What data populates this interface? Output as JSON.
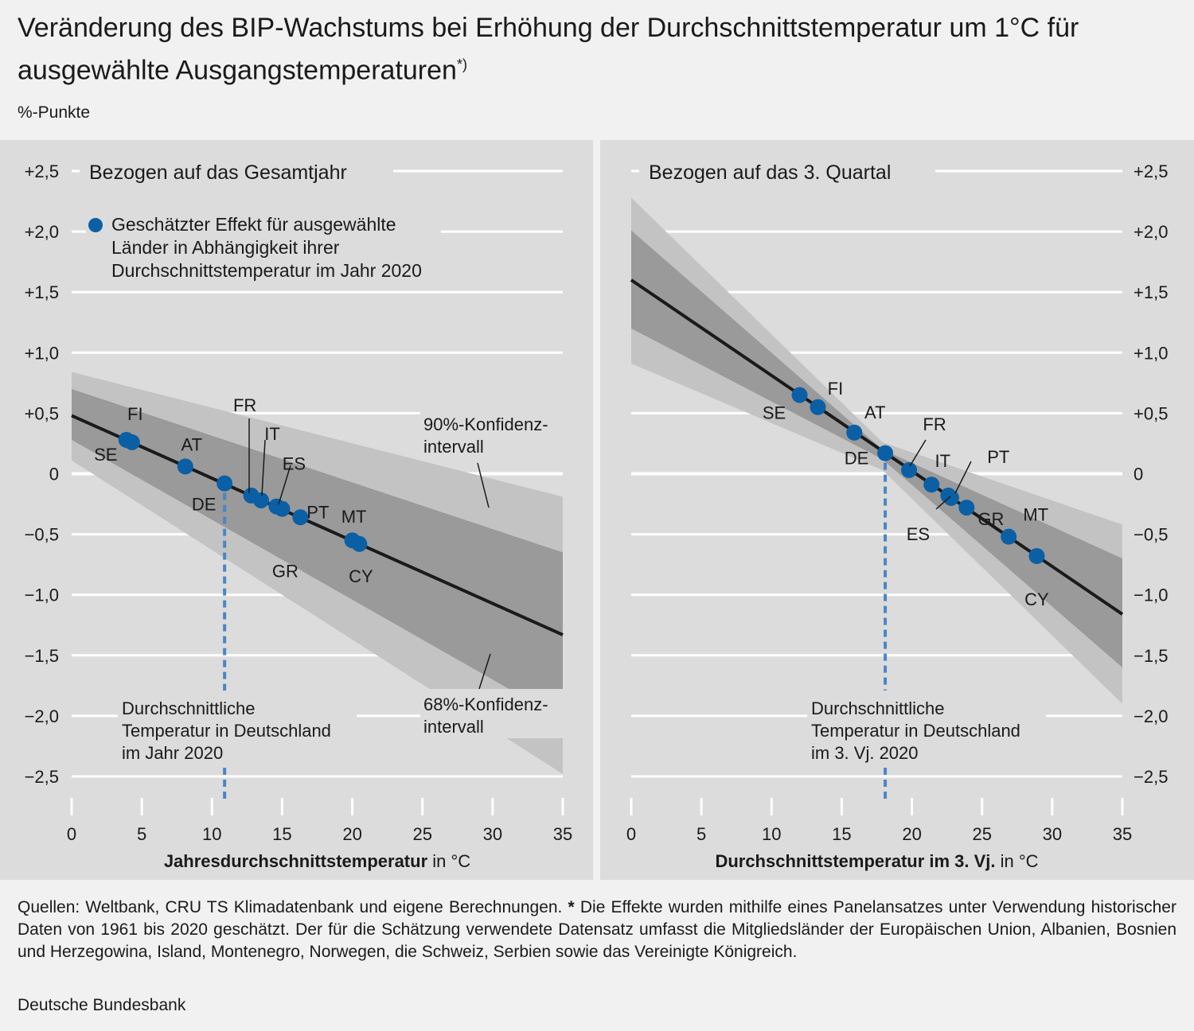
{
  "title": "Veränderung des BIP-Wachstums bei Erhöhung der Durchschnittstemperatur um 1°C für ausgewählte Ausgangstemperaturen",
  "title_marker": "*)",
  "unit": "%-Punkte",
  "footnote_source": "Quellen: Weltbank, CRU TS Klimadatenbank und eigene Berechnungen.",
  "footnote_marker": "*",
  "footnote_text": "Die Effekte wurden mithilfe eines Panelansatzes unter Verwendung historischer Daten von 1961 bis 2020 geschätzt. Der für die Schätzung verwendete Datensatz umfasst die Mitgliedsländer der Europäischen Union, Albanien, Bosnien und Herzegowina, Island, Montenegro, Norwegen, die Schweiz, Serbien sowie das Vereinigte Königreich.",
  "publisher": "Deutsche Bundesbank",
  "colors": {
    "ci90": "#c3c3c3",
    "ci68": "#9a9a9a",
    "line": "#1a1a1a",
    "point": "#0b5fa5",
    "dashed": "#4a86c5",
    "panel": "#dcdcdc",
    "grid": "#ffffff"
  },
  "chart_data": [
    {
      "type": "line",
      "title": "Bezogen auf das Gesamtjahr",
      "xlabel_bold": "Jahresdurchschnittstemperatur",
      "xlabel_unit": "in °C",
      "xlim": [
        0,
        35
      ],
      "ylim": [
        -2.5,
        2.5
      ],
      "x_ticks": [
        "0",
        "5",
        "10",
        "15",
        "20",
        "25",
        "30",
        "35"
      ],
      "y_ticks": [
        "+2,5",
        "+2,0",
        "+1,5",
        "+1,0",
        "+0,5",
        "0",
        "−0,5",
        "−1,0",
        "−1,5",
        "−2,0",
        "−2,5"
      ],
      "y_tick_values": [
        2.5,
        2.0,
        1.5,
        1.0,
        0.5,
        0,
        -0.5,
        -1.0,
        -1.5,
        -2.0,
        -2.5
      ],
      "estimate_line": {
        "x": [
          0,
          35
        ],
        "y": [
          0.48,
          -1.33
        ]
      },
      "ci68": {
        "x": [
          0,
          35
        ],
        "upper": [
          0.7,
          -0.65
        ],
        "lower": [
          0.28,
          -2.03
        ]
      },
      "ci90": {
        "x": [
          0,
          35
        ],
        "upper": [
          0.84,
          -0.19
        ],
        "lower": [
          0.11,
          -2.48
        ]
      },
      "legend_points": "Geschätzter Effekt für ausgewählte Länder in Abhängigkeit ihrer Durchschnittstemperatur im Jahr 2020",
      "label_ci90": "90%-Konfidenz-intervall",
      "label_ci68": "68%-Konfidenz-intervall",
      "reference": {
        "x": 10.9,
        "label": "Durchschnittliche Temperatur in Deutschland im Jahr 2020"
      },
      "points": [
        {
          "country": "SE",
          "x": 3.9,
          "y": 0.28
        },
        {
          "country": "FI",
          "x": 4.3,
          "y": 0.26
        },
        {
          "country": "AT",
          "x": 8.1,
          "y": 0.06
        },
        {
          "country": "DE",
          "x": 10.9,
          "y": -0.08
        },
        {
          "country": "FR",
          "x": 12.8,
          "y": -0.18
        },
        {
          "country": "IT",
          "x": 13.5,
          "y": -0.22
        },
        {
          "country": "ES",
          "x": 14.6,
          "y": -0.27
        },
        {
          "country": "GR",
          "x": 15.0,
          "y": -0.29
        },
        {
          "country": "PT",
          "x": 16.3,
          "y": -0.36
        },
        {
          "country": "MT",
          "x": 20.0,
          "y": -0.55
        },
        {
          "country": "CY",
          "x": 20.5,
          "y": -0.58
        }
      ]
    },
    {
      "type": "line",
      "title": "Bezogen auf das 3. Quartal",
      "xlabel_bold": "Durchschnittstemperatur im 3. Vj.",
      "xlabel_unit": "in °C",
      "xlim": [
        0,
        35
      ],
      "ylim": [
        -2.5,
        2.5
      ],
      "x_ticks": [
        "0",
        "5",
        "10",
        "15",
        "20",
        "25",
        "30",
        "35"
      ],
      "y_ticks": [
        "+2,5",
        "+2,0",
        "+1,5",
        "+1,0",
        "+0,5",
        "0",
        "−0,5",
        "−1,0",
        "−1,5",
        "−2,0",
        "−2,5"
      ],
      "y_tick_values": [
        2.5,
        2.0,
        1.5,
        1.0,
        0.5,
        0,
        -0.5,
        -1.0,
        -1.5,
        -2.0,
        -2.5
      ],
      "estimate_line": {
        "x": [
          0,
          35
        ],
        "y": [
          1.6,
          -1.16
        ]
      },
      "ci68": {
        "x": [
          0,
          17.9,
          35
        ],
        "upper": [
          2.01,
          0.2,
          -0.7
        ],
        "lower": [
          1.2,
          0.12,
          -1.6
        ]
      },
      "ci90": {
        "x": [
          0,
          17.9,
          35
        ],
        "upper": [
          2.28,
          0.26,
          -0.42
        ],
        "lower": [
          0.91,
          0.03,
          -1.9
        ]
      },
      "reference": {
        "x": 18.1,
        "label": "Durchschnittliche Temperatur in Deutschland im 3. Vj. 2020"
      },
      "points": [
        {
          "country": "SE",
          "x": 12.0,
          "y": 0.65
        },
        {
          "country": "FI",
          "x": 13.3,
          "y": 0.55
        },
        {
          "country": "AT",
          "x": 15.9,
          "y": 0.34
        },
        {
          "country": "DE",
          "x": 18.1,
          "y": 0.17
        },
        {
          "country": "FR",
          "x": 19.8,
          "y": 0.03
        },
        {
          "country": "IT",
          "x": 21.4,
          "y": -0.09
        },
        {
          "country": "ES",
          "x": 22.6,
          "y": -0.18
        },
        {
          "country": "GR",
          "x": 22.8,
          "y": -0.2
        },
        {
          "country": "PT",
          "x": 23.9,
          "y": -0.28
        },
        {
          "country": "MT",
          "x": 26.9,
          "y": -0.52
        },
        {
          "country": "CY",
          "x": 28.9,
          "y": -0.68
        }
      ]
    }
  ]
}
